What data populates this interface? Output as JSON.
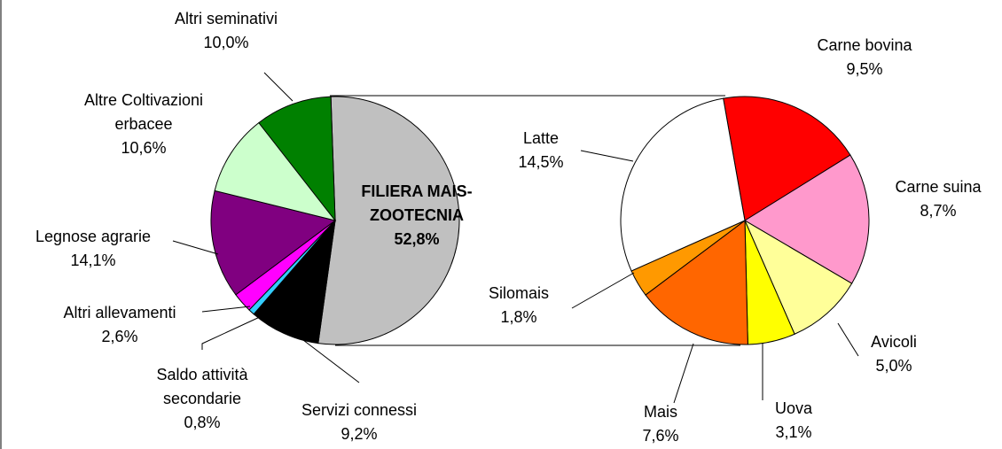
{
  "chart_data": [
    {
      "type": "pie",
      "categories": [
        "FILIERA MAIS-ZOOTECNIA",
        "Servizi connessi",
        "Saldo attività secondarie",
        "Altri allevamenti",
        "Legnose agrarie",
        "Altre Coltivazioni erbacee",
        "Altri seminativi"
      ],
      "values": [
        52.8,
        9.2,
        0.8,
        2.6,
        14.1,
        10.6,
        10.0
      ],
      "value_labels": [
        "52,8%",
        "9,2%",
        "0,8%",
        "2,6%",
        "14,1%",
        "10,6%",
        "10,0%"
      ],
      "colors": [
        "#c0c0c0",
        "#000000",
        "#33ccff",
        "#ff00ff",
        "#800080",
        "#ccffcc",
        "#008000"
      ]
    },
    {
      "type": "pie",
      "categories": [
        "Carne bovina",
        "Carne suina",
        "Avicoli",
        "Uova",
        "Mais",
        "Silomais",
        "Latte"
      ],
      "values": [
        9.5,
        8.7,
        5.0,
        3.1,
        7.6,
        1.8,
        14.5
      ],
      "value_labels": [
        "9,5%",
        "8,7%",
        "5,0%",
        "3,1%",
        "7,6%",
        "1,8%",
        "14,5%"
      ],
      "colors": [
        "#ff0000",
        "#ff99cc",
        "#ffff99",
        "#ffff00",
        "#ff6600",
        "#ff9900",
        "#ffffff"
      ]
    }
  ]
}
